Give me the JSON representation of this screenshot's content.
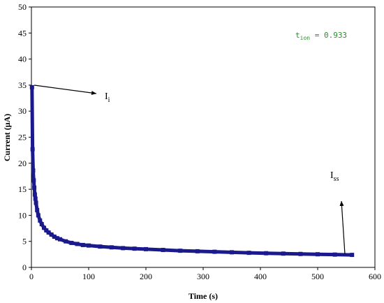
{
  "chart_data": {
    "type": "scatter",
    "xlabel": "Time (s)",
    "ylabel": "Current (μA)",
    "xlim": [
      0,
      600
    ],
    "ylim": [
      0,
      50
    ],
    "xticks": [
      0,
      100,
      200,
      300,
      400,
      500,
      600
    ],
    "yticks": [
      0,
      5,
      10,
      15,
      20,
      25,
      30,
      35,
      40,
      45,
      50
    ],
    "grid": false,
    "legend": "none",
    "series": [
      {
        "color": "#1a1a8c",
        "marker": "square",
        "x": [
          1,
          2,
          3,
          4,
          5,
          6,
          7,
          8,
          10,
          12,
          15,
          18,
          22,
          26,
          30,
          35,
          40,
          45,
          50,
          60,
          70,
          80,
          90,
          100,
          120,
          140,
          160,
          180,
          200,
          230,
          260,
          290,
          320,
          350,
          380,
          410,
          440,
          470,
          500,
          530,
          560
        ],
        "y": [
          34.6,
          22.7,
          18.6,
          16.7,
          15.3,
          14.0,
          13.2,
          12.4,
          11.0,
          10.0,
          9.0,
          8.3,
          7.6,
          7.1,
          6.7,
          6.3,
          5.9,
          5.6,
          5.4,
          5.0,
          4.7,
          4.5,
          4.3,
          4.2,
          4.0,
          3.85,
          3.7,
          3.6,
          3.5,
          3.35,
          3.2,
          3.1,
          3.0,
          2.9,
          2.8,
          2.72,
          2.65,
          2.58,
          2.52,
          2.46,
          2.4
        ]
      }
    ],
    "annotations": {
      "ii": {
        "main": "I",
        "sub": "i"
      },
      "iss": {
        "main": "I",
        "sub": "ss"
      },
      "tion": {
        "main": "t",
        "sub": "ion",
        "value": " = 0.933",
        "color": "#2e8b2e"
      }
    }
  }
}
